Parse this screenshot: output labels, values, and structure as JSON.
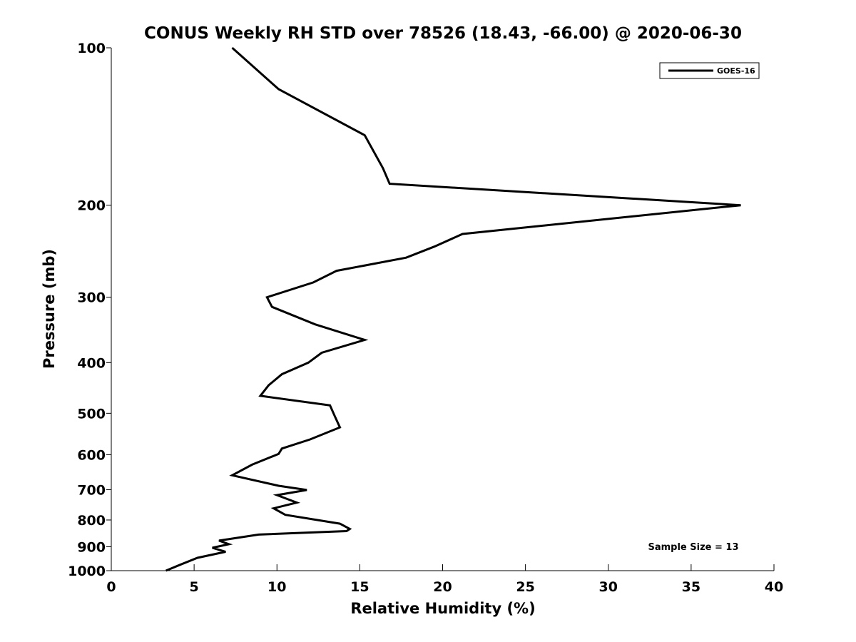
{
  "chart_data": {
    "type": "line",
    "title": "CONUS Weekly RH STD over 78526 (18.43, -66.00) @ 2020-06-30",
    "xlabel": "Relative Humidity (%)",
    "ylabel": "Pressure (mb)",
    "xlim": [
      0,
      40
    ],
    "ylim": [
      100,
      1000
    ],
    "yscale": "log",
    "yreversed": true,
    "xticks": [
      0,
      5,
      10,
      15,
      20,
      25,
      30,
      35,
      40
    ],
    "yticks": [
      100,
      200,
      300,
      400,
      500,
      600,
      700,
      800,
      900,
      1000
    ],
    "xtick_labels": [
      "0",
      "5",
      "10",
      "15",
      "20",
      "25",
      "30",
      "35",
      "40"
    ],
    "ytick_labels": [
      "100",
      "200",
      "300",
      "400",
      "500",
      "600",
      "700",
      "800",
      "900",
      "1000"
    ],
    "legend_position": "top-right",
    "annotation": "Sample Size = 13",
    "series": [
      {
        "name": "GOES-16",
        "color": "#000000",
        "x": [
          7.3,
          10.1,
          15.3,
          16.4,
          16.8,
          38.0,
          21.2,
          19.5,
          17.8,
          13.6,
          12.2,
          9.4,
          9.7,
          12.3,
          15.3,
          12.7,
          11.9,
          10.3,
          9.5,
          9.0,
          13.2,
          13.5,
          13.8,
          12.0,
          10.3,
          10.1,
          8.5,
          7.3,
          10.1,
          11.8,
          10.0,
          11.2,
          9.8,
          10.5,
          13.8,
          14.4,
          14.2,
          8.9,
          6.5,
          7.1,
          6.1,
          6.9,
          5.2,
          4.2,
          3.3
        ],
        "y": [
          100,
          120,
          147,
          170,
          182,
          200,
          227,
          240,
          252,
          267,
          281,
          300,
          313,
          338,
          362,
          383,
          400,
          421,
          442,
          463,
          483,
          507,
          532,
          561,
          584,
          598,
          627,
          657,
          688,
          701,
          717,
          741,
          760,
          782,
          813,
          832,
          840,
          853,
          876,
          890,
          904,
          920,
          945,
          973,
          1000
        ]
      }
    ]
  }
}
